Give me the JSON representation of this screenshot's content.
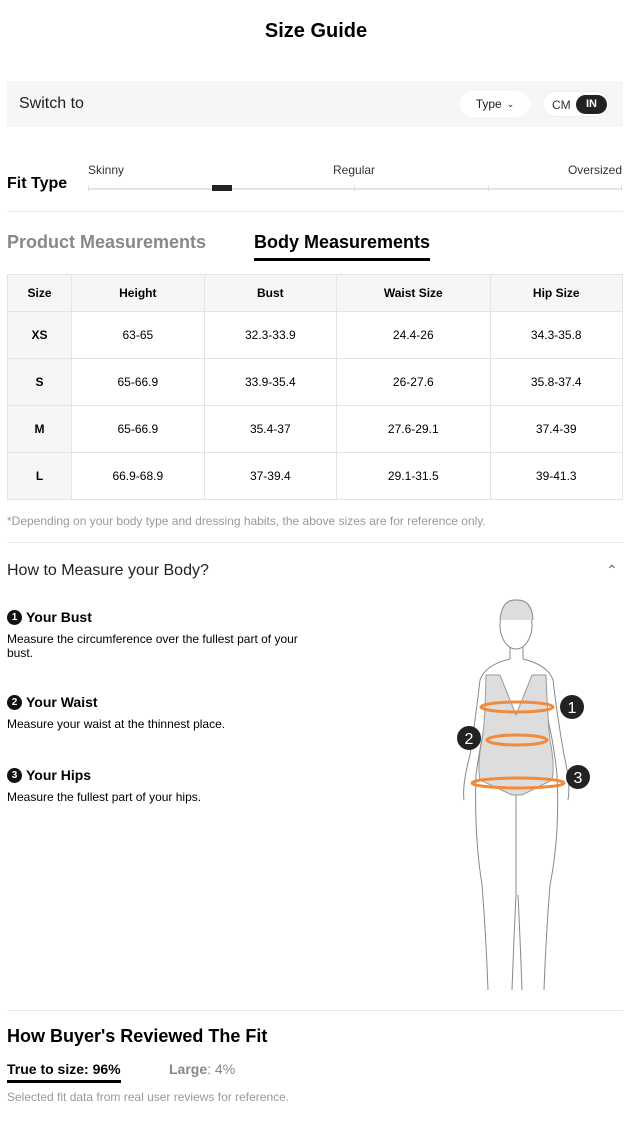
{
  "title": "Size Guide",
  "switch": {
    "label": "Switch to",
    "type_label": "Type",
    "units": [
      "CM",
      "IN"
    ],
    "selected_unit": "IN"
  },
  "fit": {
    "title": "Fit Type",
    "labels": [
      "Skinny",
      "Regular",
      "Oversized"
    ],
    "position": 0.25
  },
  "tabs": {
    "product": "Product Measurements",
    "body": "Body Measurements",
    "active": "body"
  },
  "table": {
    "headers": [
      "Size",
      "Height",
      "Bust",
      "Waist Size",
      "Hip Size"
    ],
    "rows": [
      [
        "XS",
        "63-65",
        "32.3-33.9",
        "24.4-26",
        "34.3-35.8"
      ],
      [
        "S",
        "65-66.9",
        "33.9-35.4",
        "26-27.6",
        "35.8-37.4"
      ],
      [
        "M",
        "65-66.9",
        "35.4-37",
        "27.6-29.1",
        "37.4-39"
      ],
      [
        "L",
        "66.9-68.9",
        "37-39.4",
        "29.1-31.5",
        "39-41.3"
      ]
    ]
  },
  "note": "*Depending on your body type and dressing habits, the above sizes are for reference only.",
  "howto": {
    "title": "How to Measure your Body?",
    "items": [
      {
        "num": "1",
        "title": "Your Bust",
        "desc": "Measure the circumference over the fullest part of your bust."
      },
      {
        "num": "2",
        "title": "Your Waist",
        "desc": "Measure your waist at the thinnest place."
      },
      {
        "num": "3",
        "title": "Your Hips",
        "desc": "Measure the fullest part of your hips."
      }
    ]
  },
  "reviews": {
    "title": "How Buyer's Reviewed The Fit",
    "true_label": "True to size: 96%",
    "large_label": "Large",
    "large_value": ": 4%",
    "note": "Selected fit data from real user reviews for reference."
  },
  "colors": {
    "accent": "#000000",
    "measure_line": "#f08a3c"
  }
}
